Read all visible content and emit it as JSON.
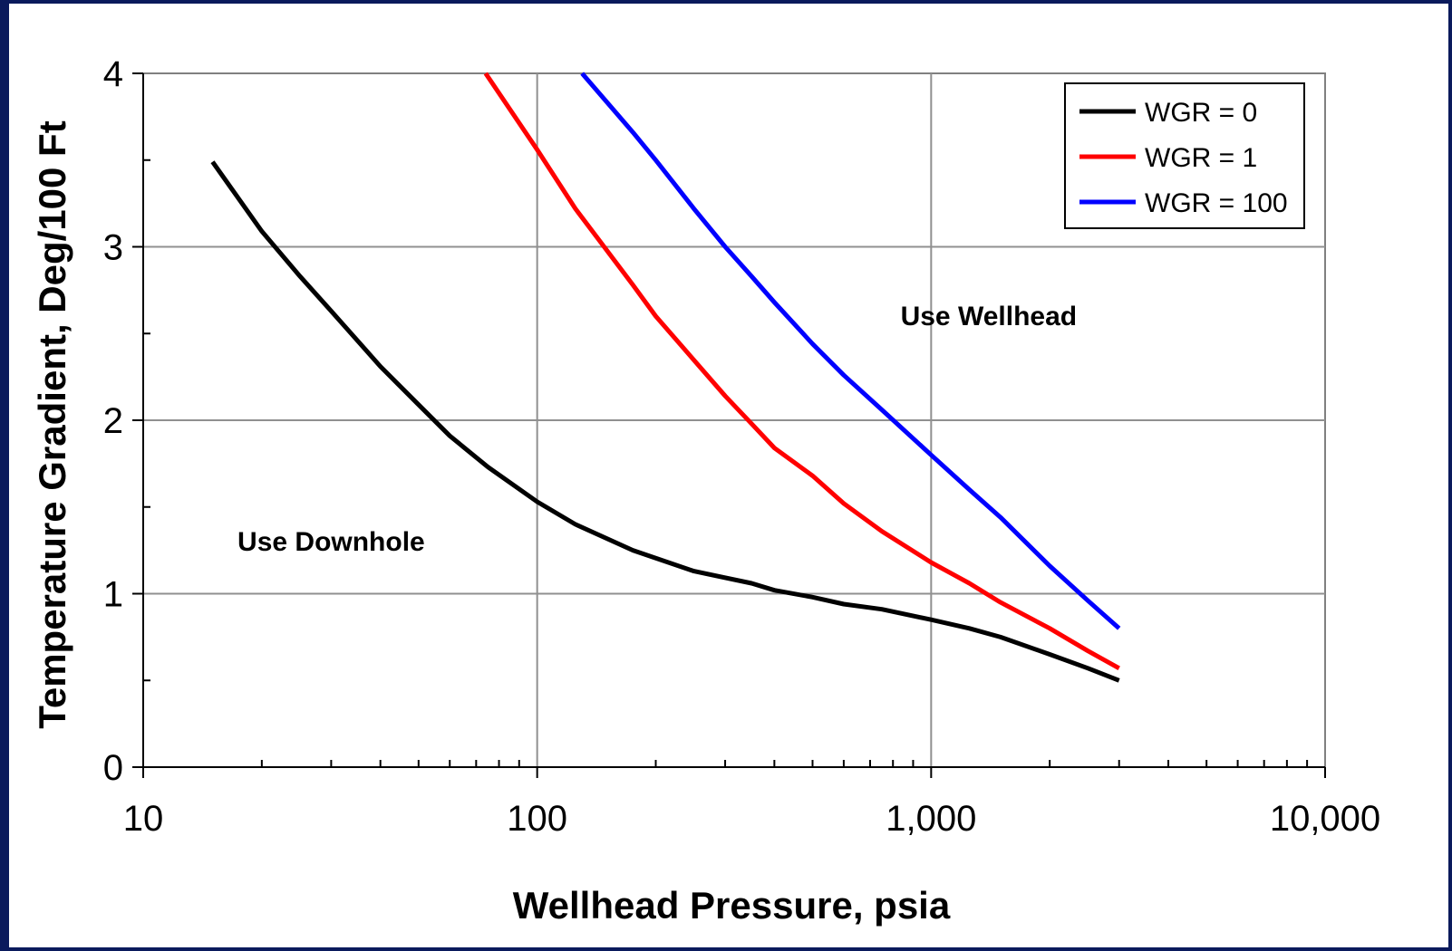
{
  "chart_data": {
    "type": "line",
    "title": "",
    "xlabel": "Wellhead Pressure, psia",
    "ylabel": "Temperature Gradient, Deg/100 Ft",
    "xscale": "log",
    "xlim": [
      10,
      10000
    ],
    "ylim": [
      0,
      4
    ],
    "xticks": [
      {
        "value": 10,
        "label": "10"
      },
      {
        "value": 100,
        "label": "100"
      },
      {
        "value": 1000,
        "label": "1,000"
      },
      {
        "value": 10000,
        "label": "10,000"
      }
    ],
    "yticks": [
      {
        "value": 0,
        "label": "0"
      },
      {
        "value": 1,
        "label": "1"
      },
      {
        "value": 2,
        "label": "2"
      },
      {
        "value": 3,
        "label": "3"
      },
      {
        "value": 4,
        "label": "4"
      }
    ],
    "grid": true,
    "legend_position": "top-right",
    "series": [
      {
        "name": "WGR = 0",
        "color": "#000000",
        "x": [
          15,
          20,
          25,
          30,
          40,
          50,
          60,
          75,
          100,
          125,
          175,
          250,
          350,
          400,
          500,
          600,
          750,
          1000,
          1250,
          1500,
          2000,
          2500,
          3000
        ],
        "y": [
          3.49,
          3.09,
          2.83,
          2.63,
          2.31,
          2.09,
          1.91,
          1.73,
          1.53,
          1.4,
          1.25,
          1.13,
          1.06,
          1.02,
          0.98,
          0.94,
          0.91,
          0.85,
          0.8,
          0.75,
          0.65,
          0.57,
          0.5
        ]
      },
      {
        "name": "WGR = 1",
        "color": "#ff0000",
        "x": [
          74,
          100,
          125,
          175,
          200,
          300,
          350,
          400,
          500,
          600,
          750,
          1000,
          1250,
          1500,
          2000,
          2500,
          3000
        ],
        "y": [
          4.0,
          3.56,
          3.22,
          2.78,
          2.6,
          2.14,
          1.98,
          1.84,
          1.68,
          1.52,
          1.36,
          1.18,
          1.06,
          0.95,
          0.8,
          0.67,
          0.57
        ]
      },
      {
        "name": "WGR = 100",
        "color": "#0000ff",
        "x": [
          130,
          175,
          200,
          250,
          300,
          350,
          400,
          500,
          600,
          750,
          1000,
          1250,
          1500,
          2000,
          2500,
          3000
        ],
        "y": [
          4.0,
          3.66,
          3.5,
          3.22,
          3.0,
          2.83,
          2.68,
          2.44,
          2.26,
          2.06,
          1.8,
          1.6,
          1.44,
          1.16,
          0.96,
          0.8
        ]
      }
    ],
    "annotations": [
      {
        "text": "Use Wellhead",
        "x": 1400,
        "y": 2.6
      },
      {
        "text": "Use Downhole",
        "x": 30,
        "y": 1.3
      }
    ]
  }
}
